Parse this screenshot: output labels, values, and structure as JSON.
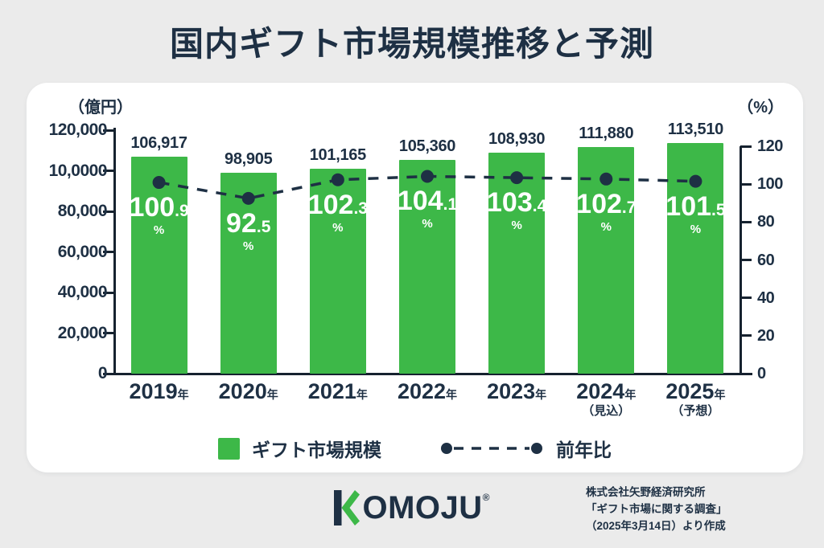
{
  "title": "国内ギフト市場規模推移と予測",
  "colors": {
    "bar_green": "#3db848",
    "navy": "#1e3044",
    "axis_dark": "#16222f",
    "background": "#ebebeb",
    "card": "#ffffff"
  },
  "chart_data": {
    "type": "bar",
    "title": "国内ギフト市場規模推移と予測",
    "unit_left": "（億円）",
    "unit_right": "（%）",
    "categories": [
      "2019",
      "2020",
      "2021",
      "2022",
      "2023",
      "2024",
      "2025"
    ],
    "category_era_suffix": "年",
    "category_notes": [
      "",
      "",
      "",
      "",
      "",
      "（見込）",
      "（予想）"
    ],
    "series": [
      {
        "name": "ギフト市場規模",
        "type": "bar",
        "color": "#3db848",
        "values": [
          106917,
          98905,
          101165,
          105360,
          108930,
          111880,
          113510
        ],
        "value_labels": [
          "106,917",
          "98,905",
          "101,165",
          "105,360",
          "108,930",
          "111,880",
          "113,510"
        ]
      },
      {
        "name": "前年比",
        "type": "line",
        "color": "#1e3044",
        "unit": "%",
        "values": [
          100.9,
          92.5,
          102.3,
          104.1,
          103.4,
          102.7,
          101.5
        ]
      }
    ],
    "y_left": {
      "tick_labels": [
        "120,000",
        "10,0000",
        "80,000",
        "60,000",
        "40,000",
        "20,000",
        "0"
      ],
      "min": 0,
      "max": 120000
    },
    "y_right": {
      "tick_labels": [
        "120",
        "100",
        "80",
        "60",
        "40",
        "20",
        "0"
      ],
      "min": 0,
      "max": 120
    },
    "grid": false,
    "legend_position": "bottom"
  },
  "legend": {
    "bar_label": "ギフト市場規模",
    "line_label": "前年比"
  },
  "footer": {
    "brand_rest": "OMOJU",
    "reg": "®",
    "source_lines": [
      "株式会社矢野経済研究所",
      "「ギフト市場に関する調査」",
      "（2025年3月14日）より作成"
    ]
  }
}
